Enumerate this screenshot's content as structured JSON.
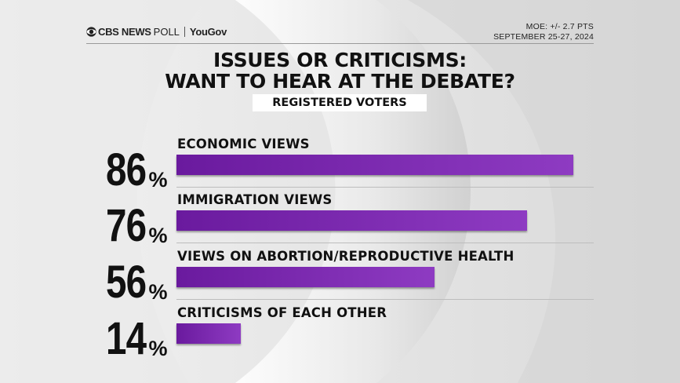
{
  "header": {
    "brand_cbs": "CBS NEWS",
    "brand_poll": "POLL",
    "brand_partner": "YouGov",
    "moe": "MOE: +/- 2.7 PTS",
    "dates": "SEPTEMBER 25-27, 2024"
  },
  "chart_data": {
    "type": "bar",
    "orientation": "horizontal",
    "title": "ISSUES OR CRITICISMS: WANT TO HEAR AT THE DEBATE?",
    "title_line1": "ISSUES OR CRITICISMS:",
    "title_line2": "WANT TO HEAR AT THE DEBATE?",
    "subtitle": "REGISTERED VOTERS",
    "categories": [
      "ECONOMIC VIEWS",
      "IMMIGRATION VIEWS",
      "VIEWS ON ABORTION/REPRODUCTIVE HEALTH",
      "CRITICISMS OF EACH OTHER"
    ],
    "values": [
      86,
      76,
      56,
      14
    ],
    "value_labels": [
      "86",
      "76",
      "56",
      "14"
    ],
    "unit": "%",
    "xlim": [
      0,
      86
    ],
    "bar_color": "#7b2cb0"
  }
}
